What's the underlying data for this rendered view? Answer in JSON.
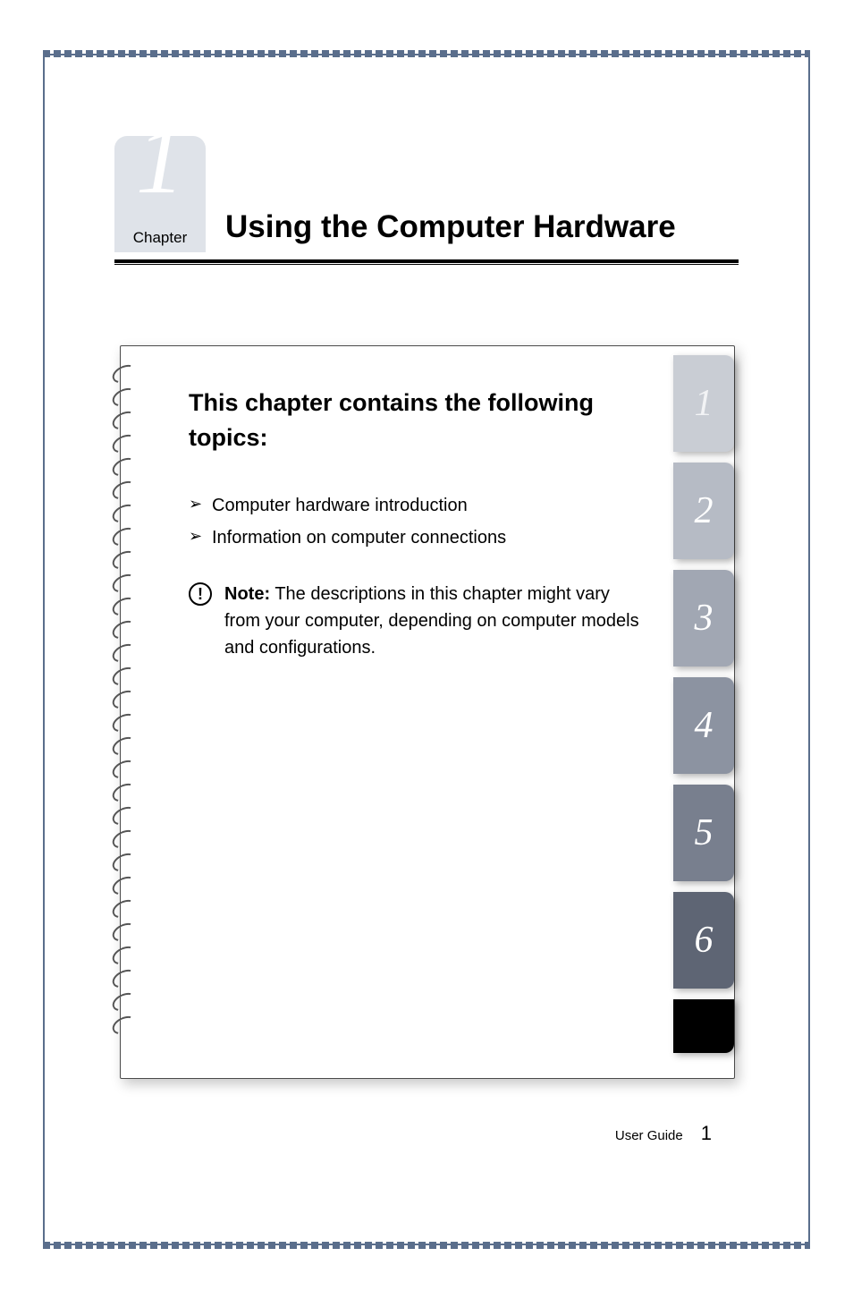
{
  "page": {
    "frame_color": "#5a6e8c",
    "background": "#ffffff"
  },
  "chapter_box": {
    "number": "1",
    "label": "Chapter",
    "bg_color": "#dfe3e9",
    "number_color": "#ffffff",
    "number_font": "Georgia serif italic",
    "number_fontsize": 108,
    "label_fontsize": 17
  },
  "title": {
    "text": "Using the Computer Hardware",
    "fontsize": 35,
    "font_weight": "bold"
  },
  "content": {
    "heading": "This chapter contains the following topics:",
    "heading_fontsize": 27,
    "bullets": [
      "Computer hardware introduction",
      "Information on computer connections"
    ],
    "bullet_fontsize": 20,
    "note": {
      "label": "Note:",
      "text": "The descriptions in this chapter might vary from your computer, depending on computer models and configurations.",
      "icon_glyph": "!"
    }
  },
  "tabs": {
    "items": [
      {
        "label": "1",
        "bg": "#c9cdd4",
        "fg": "#f2f3f5"
      },
      {
        "label": "2",
        "bg": "#b6bbc5",
        "fg": "#ffffff"
      },
      {
        "label": "3",
        "bg": "#a1a7b3",
        "fg": "#ffffff"
      },
      {
        "label": "4",
        "bg": "#8c93a1",
        "fg": "#ffffff"
      },
      {
        "label": "5",
        "bg": "#787f8e",
        "fg": "#ffffff"
      },
      {
        "label": "6",
        "bg": "#5e6574",
        "fg": "#ffffff"
      }
    ],
    "tab_width": 68,
    "tab_height": 108,
    "tab_fontsize": 42,
    "bottom_cap_color": "#000000"
  },
  "spiral": {
    "ring_count": 29,
    "ring_color": "#555555"
  },
  "footer": {
    "label": "User Guide",
    "page_number": "1",
    "label_fontsize": 15,
    "page_fontsize": 22
  }
}
